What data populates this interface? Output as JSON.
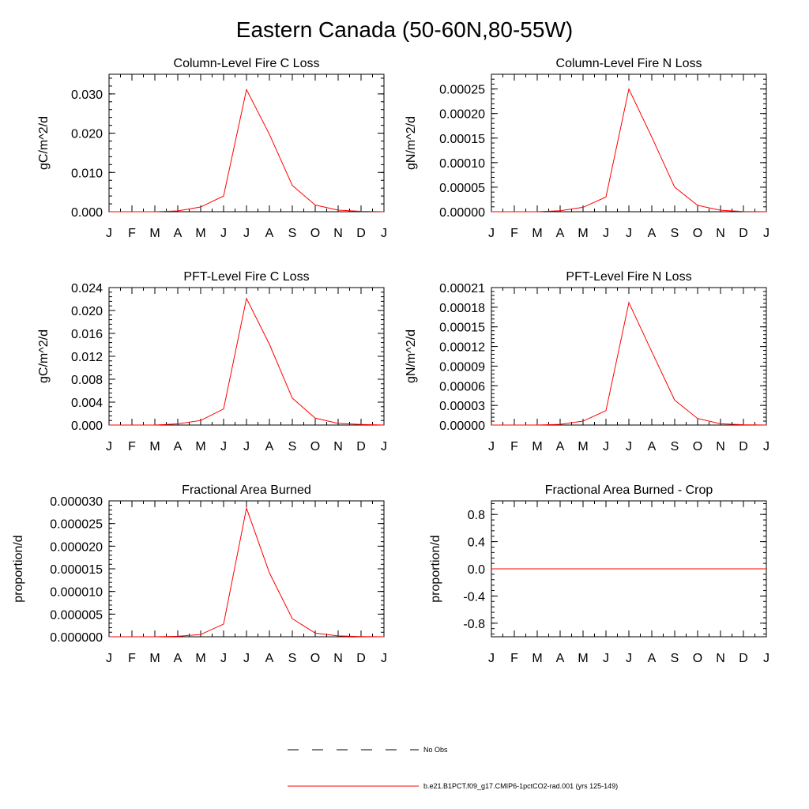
{
  "title": "Eastern Canada (50-60N,80-55W)",
  "colors": {
    "series": "#ff0000",
    "axis": "#000000",
    "obs": "#000000"
  },
  "legend": {
    "obs_label": "No Obs",
    "model_label": "b.e21.B1PCT.f09_g17.CMIP6-1pctCO2-rad.001 (yrs 125-149)"
  },
  "chart_data": [
    {
      "type": "line",
      "title": "Column-Level Fire C Loss",
      "ylabel": "gC/m^2/d",
      "xlabel": "",
      "x_ticklabels": [
        "J",
        "F",
        "M",
        "A",
        "M",
        "J",
        "J",
        "A",
        "S",
        "O",
        "N",
        "D",
        "J"
      ],
      "y_ticklabels": [
        "0.000",
        "0.010",
        "0.020",
        "0.030"
      ],
      "ylim": [
        0,
        0.035
      ],
      "grid": false,
      "series": [
        {
          "values": [
            0.0,
            0.0,
            0.0,
            0.0002,
            0.0012,
            0.004,
            0.0311,
            0.0197,
            0.0067,
            0.0017,
            0.0004,
            0.0001,
            0.0
          ]
        }
      ]
    },
    {
      "type": "line",
      "title": "Column-Level Fire N Loss",
      "ylabel": "gN/m^2/d",
      "xlabel": "",
      "x_ticklabels": [
        "J",
        "F",
        "M",
        "A",
        "M",
        "J",
        "J",
        "A",
        "S",
        "O",
        "N",
        "D",
        "J"
      ],
      "y_ticklabels": [
        "0.00000",
        "0.00005",
        "0.00010",
        "0.00015",
        "0.00020",
        "0.00025"
      ],
      "ylim": [
        0,
        0.00028
      ],
      "grid": false,
      "series": [
        {
          "values": [
            0.0,
            0.0,
            0.0,
            2e-06,
            9e-06,
            3e-05,
            0.00025,
            0.000152,
            5e-05,
            1.3e-05,
            3e-06,
            5e-07,
            0.0
          ]
        }
      ]
    },
    {
      "type": "line",
      "title": "PFT-Level Fire C Loss",
      "ylabel": "gC/m^2/d",
      "xlabel": "",
      "x_ticklabels": [
        "J",
        "F",
        "M",
        "A",
        "M",
        "J",
        "J",
        "A",
        "S",
        "O",
        "N",
        "D",
        "J"
      ],
      "y_ticklabels": [
        "0.000",
        "0.004",
        "0.008",
        "0.012",
        "0.016",
        "0.020",
        "0.024"
      ],
      "ylim": [
        0,
        0.024
      ],
      "grid": false,
      "series": [
        {
          "values": [
            0.0,
            0.0,
            0.0,
            0.0002,
            0.0008,
            0.0028,
            0.0221,
            0.0141,
            0.0047,
            0.0012,
            0.0003,
            0.0001,
            0.0
          ]
        }
      ]
    },
    {
      "type": "line",
      "title": "PFT-Level Fire N Loss",
      "ylabel": "gN/m^2/d",
      "xlabel": "",
      "x_ticklabels": [
        "J",
        "F",
        "M",
        "A",
        "M",
        "J",
        "J",
        "A",
        "S",
        "O",
        "N",
        "D",
        "J"
      ],
      "y_ticklabels": [
        "0.00000",
        "0.00003",
        "0.00006",
        "0.00009",
        "0.00012",
        "0.00015",
        "0.00018",
        "0.00021"
      ],
      "ylim": [
        0,
        0.00021
      ],
      "grid": false,
      "series": [
        {
          "values": [
            0.0,
            0.0,
            0.0,
            1e-06,
            6e-06,
            2.2e-05,
            0.000187,
            0.000112,
            3.8e-05,
            1e-05,
            2e-06,
            5e-07,
            0.0
          ]
        }
      ]
    },
    {
      "type": "line",
      "title": "Fractional Area Burned",
      "ylabel": "proportion/d",
      "xlabel": "",
      "x_ticklabels": [
        "J",
        "F",
        "M",
        "A",
        "M",
        "J",
        "J",
        "A",
        "S",
        "O",
        "N",
        "D",
        "J"
      ],
      "y_ticklabels": [
        "0.000000",
        "0.000005",
        "0.000010",
        "0.000015",
        "0.000020",
        "0.000025",
        "0.000030"
      ],
      "ylim": [
        0,
        3e-05
      ],
      "grid": false,
      "series": [
        {
          "values": [
            0.0,
            0.0,
            0.0,
            1e-07,
            5e-07,
            2.8e-06,
            2.84e-05,
            1.41e-05,
            4e-06,
            8e-07,
            2e-07,
            5e-08,
            0.0
          ]
        }
      ]
    },
    {
      "type": "line",
      "title": "Fractional Area Burned - Crop",
      "ylabel": "proportion/d",
      "xlabel": "",
      "x_ticklabels": [
        "J",
        "F",
        "M",
        "A",
        "M",
        "J",
        "J",
        "A",
        "S",
        "O",
        "N",
        "D",
        "J"
      ],
      "y_ticklabels": [
        "-0.8",
        "-0.4",
        "0.0",
        "0.4",
        "0.8"
      ],
      "ylim": [
        -1.0,
        1.0
      ],
      "grid": false,
      "series": [
        {
          "values": [
            0,
            0,
            0,
            0,
            0,
            0,
            0,
            0,
            0,
            0,
            0,
            0,
            0
          ]
        }
      ]
    }
  ]
}
